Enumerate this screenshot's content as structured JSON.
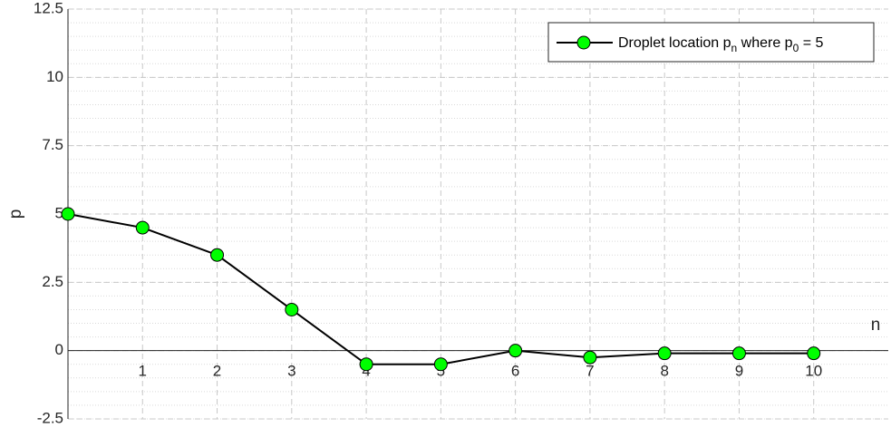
{
  "chart_data": {
    "type": "line",
    "xlabel": "n",
    "ylabel": "p",
    "xlim": [
      0,
      11
    ],
    "ylim": [
      -2.5,
      12.5
    ],
    "y_ticks": [
      "-2.5",
      "0",
      "2.5",
      "5",
      "7.5",
      "10",
      "12.5"
    ],
    "y_tick_values": [
      -2.5,
      0,
      2.5,
      5,
      7.5,
      10,
      12.5
    ],
    "x_ticks": [
      "1",
      "2",
      "3",
      "4",
      "5",
      "6",
      "7",
      "8",
      "9",
      "10"
    ],
    "x_tick_values": [
      1,
      2,
      3,
      4,
      5,
      6,
      7,
      8,
      9,
      10
    ],
    "grid": true,
    "minor_grid": true,
    "legend_placement": "top-right",
    "series": [
      {
        "name_parts": {
          "prefix": "Droplet location p",
          "sub1": "n",
          "mid": " where p",
          "sub2": "0",
          "suffix": " = 5"
        },
        "line_color": "#000000",
        "marker_color": "#00ff00",
        "x": [
          0,
          1,
          2,
          3,
          4,
          5,
          6,
          7,
          8,
          9,
          10
        ],
        "y": [
          5,
          4.5,
          3.5,
          1.5,
          -0.5,
          -0.5,
          0,
          -0.25,
          -0.1,
          -0.1,
          -0.1
        ]
      }
    ]
  }
}
